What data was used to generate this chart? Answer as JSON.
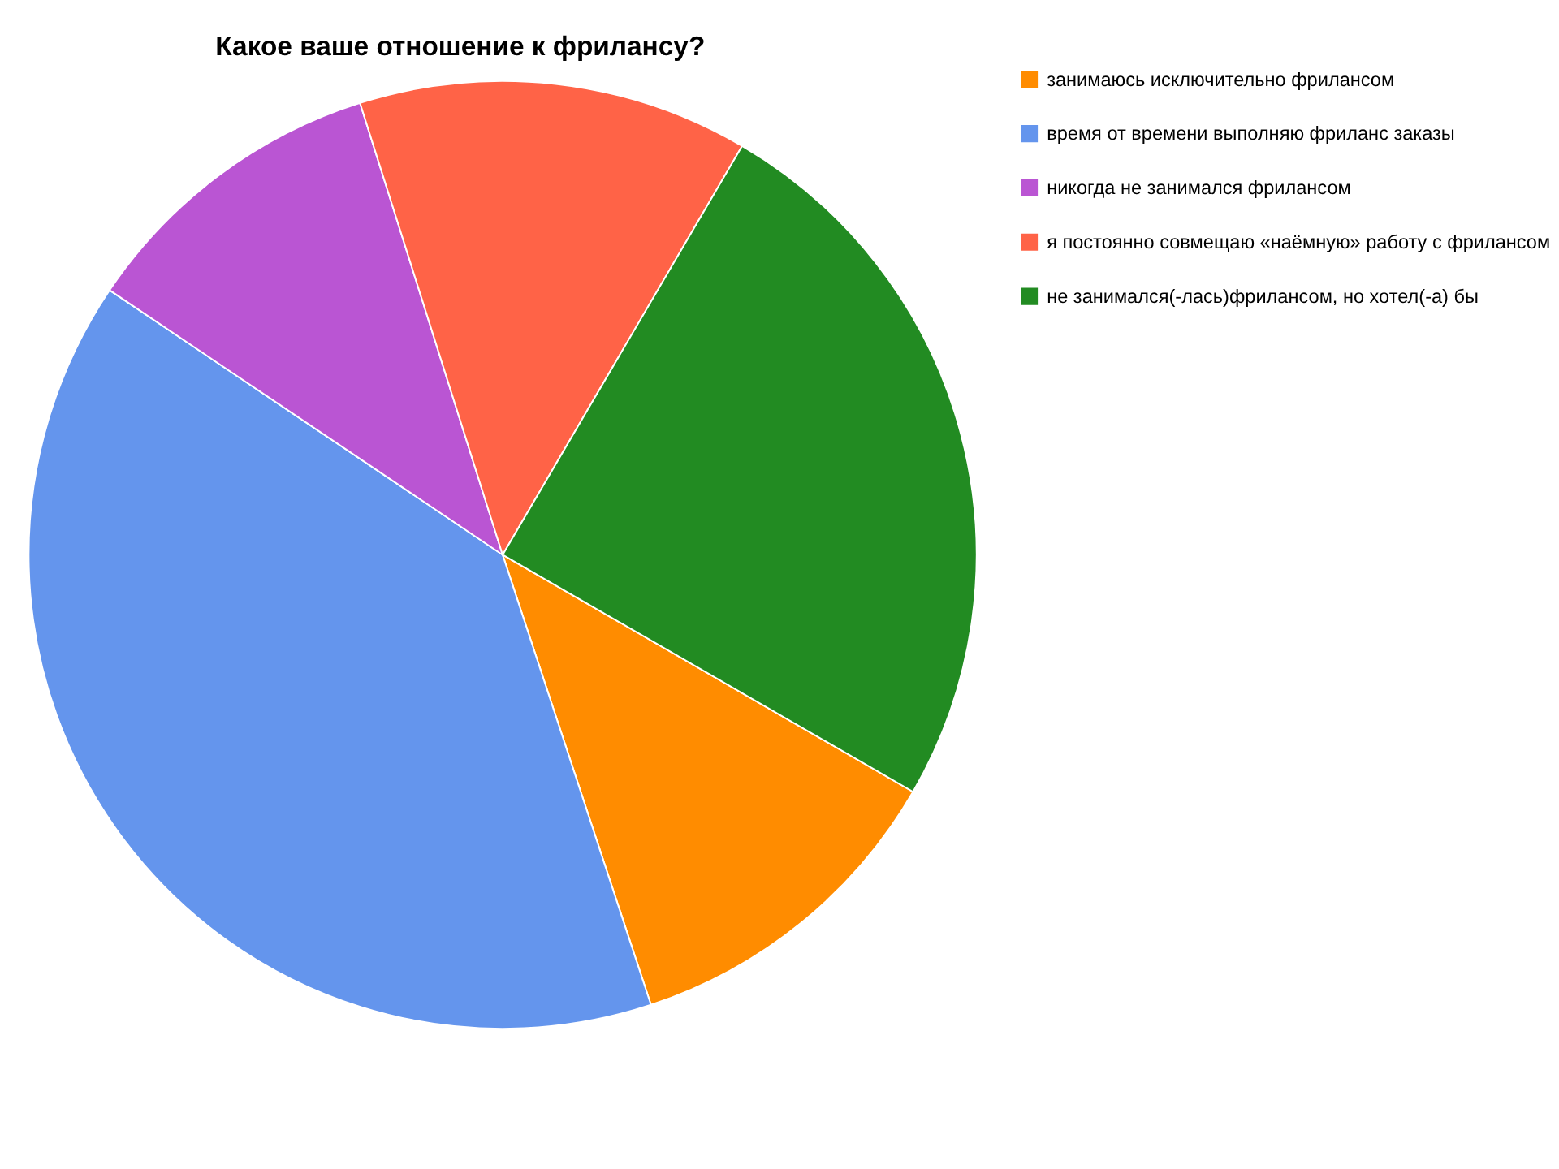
{
  "chart_data": {
    "type": "pie",
    "title": "Какое ваше отношение к фрилансу?",
    "categories": [
      "занимаюсь исключительно фрилансом",
      "время от времени выполняю фриланс заказы",
      "никогда не занимался фрилансом",
      "я постоянно совмещаю «наёмную» работу с фрилансом",
      "не занимался(-лась)фрилансом, но хотел(-а) бы"
    ],
    "values": [
      11.6,
      39.5,
      10.7,
      13.3,
      24.9
    ],
    "colors": [
      "#ff8c00",
      "#6495ed",
      "#ba55d3",
      "#ff6347",
      "#228b22"
    ],
    "legend": "right"
  }
}
